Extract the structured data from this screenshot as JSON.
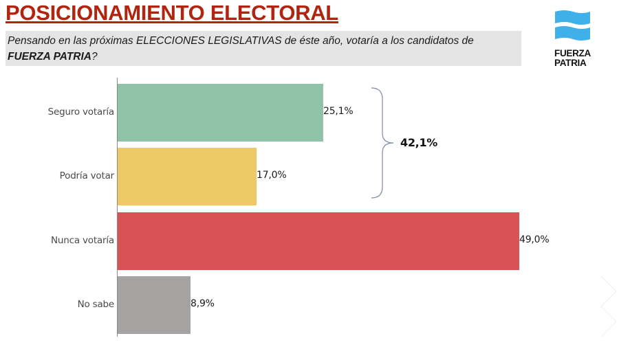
{
  "header": {
    "title": "POSICIONAMIENTO ELECTORAL",
    "question_part1": "Pensando en las próximas ELECCIONES LEGISLATIVAS de éste año, votaría a los candidatos de ",
    "question_bold": "FUERZA PATRIA",
    "question_end": "?"
  },
  "logo": {
    "line1": "FUERZA",
    "line2": "PATRIA",
    "color": "#3fb0ea"
  },
  "chart_data": {
    "type": "bar",
    "orientation": "horizontal",
    "title": "POSICIONAMIENTO ELECTORAL",
    "subtitle": "Pensando en las próximas ELECCIONES LEGISLATIVAS de éste año, votaría a los candidatos de FUERZA PATRIA?",
    "xlabel": "",
    "ylabel": "",
    "xlim": [
      0,
      50
    ],
    "grid": false,
    "categories": [
      "Seguro votaría",
      "Podría votar",
      "Nunca votaría",
      "No sabe"
    ],
    "values": [
      25.1,
      17.0,
      49.0,
      8.9
    ],
    "value_labels": [
      "25,1%",
      "17,0%",
      "49,0%",
      "8,9%"
    ],
    "colors": [
      "#8fc2a7",
      "#efc966",
      "#d95356",
      "#a6a2a1"
    ],
    "annotations": [
      {
        "type": "brace",
        "spans": [
          "Seguro votaría",
          "Podría votar"
        ],
        "label": "42,1%",
        "value": 42.1
      }
    ]
  }
}
